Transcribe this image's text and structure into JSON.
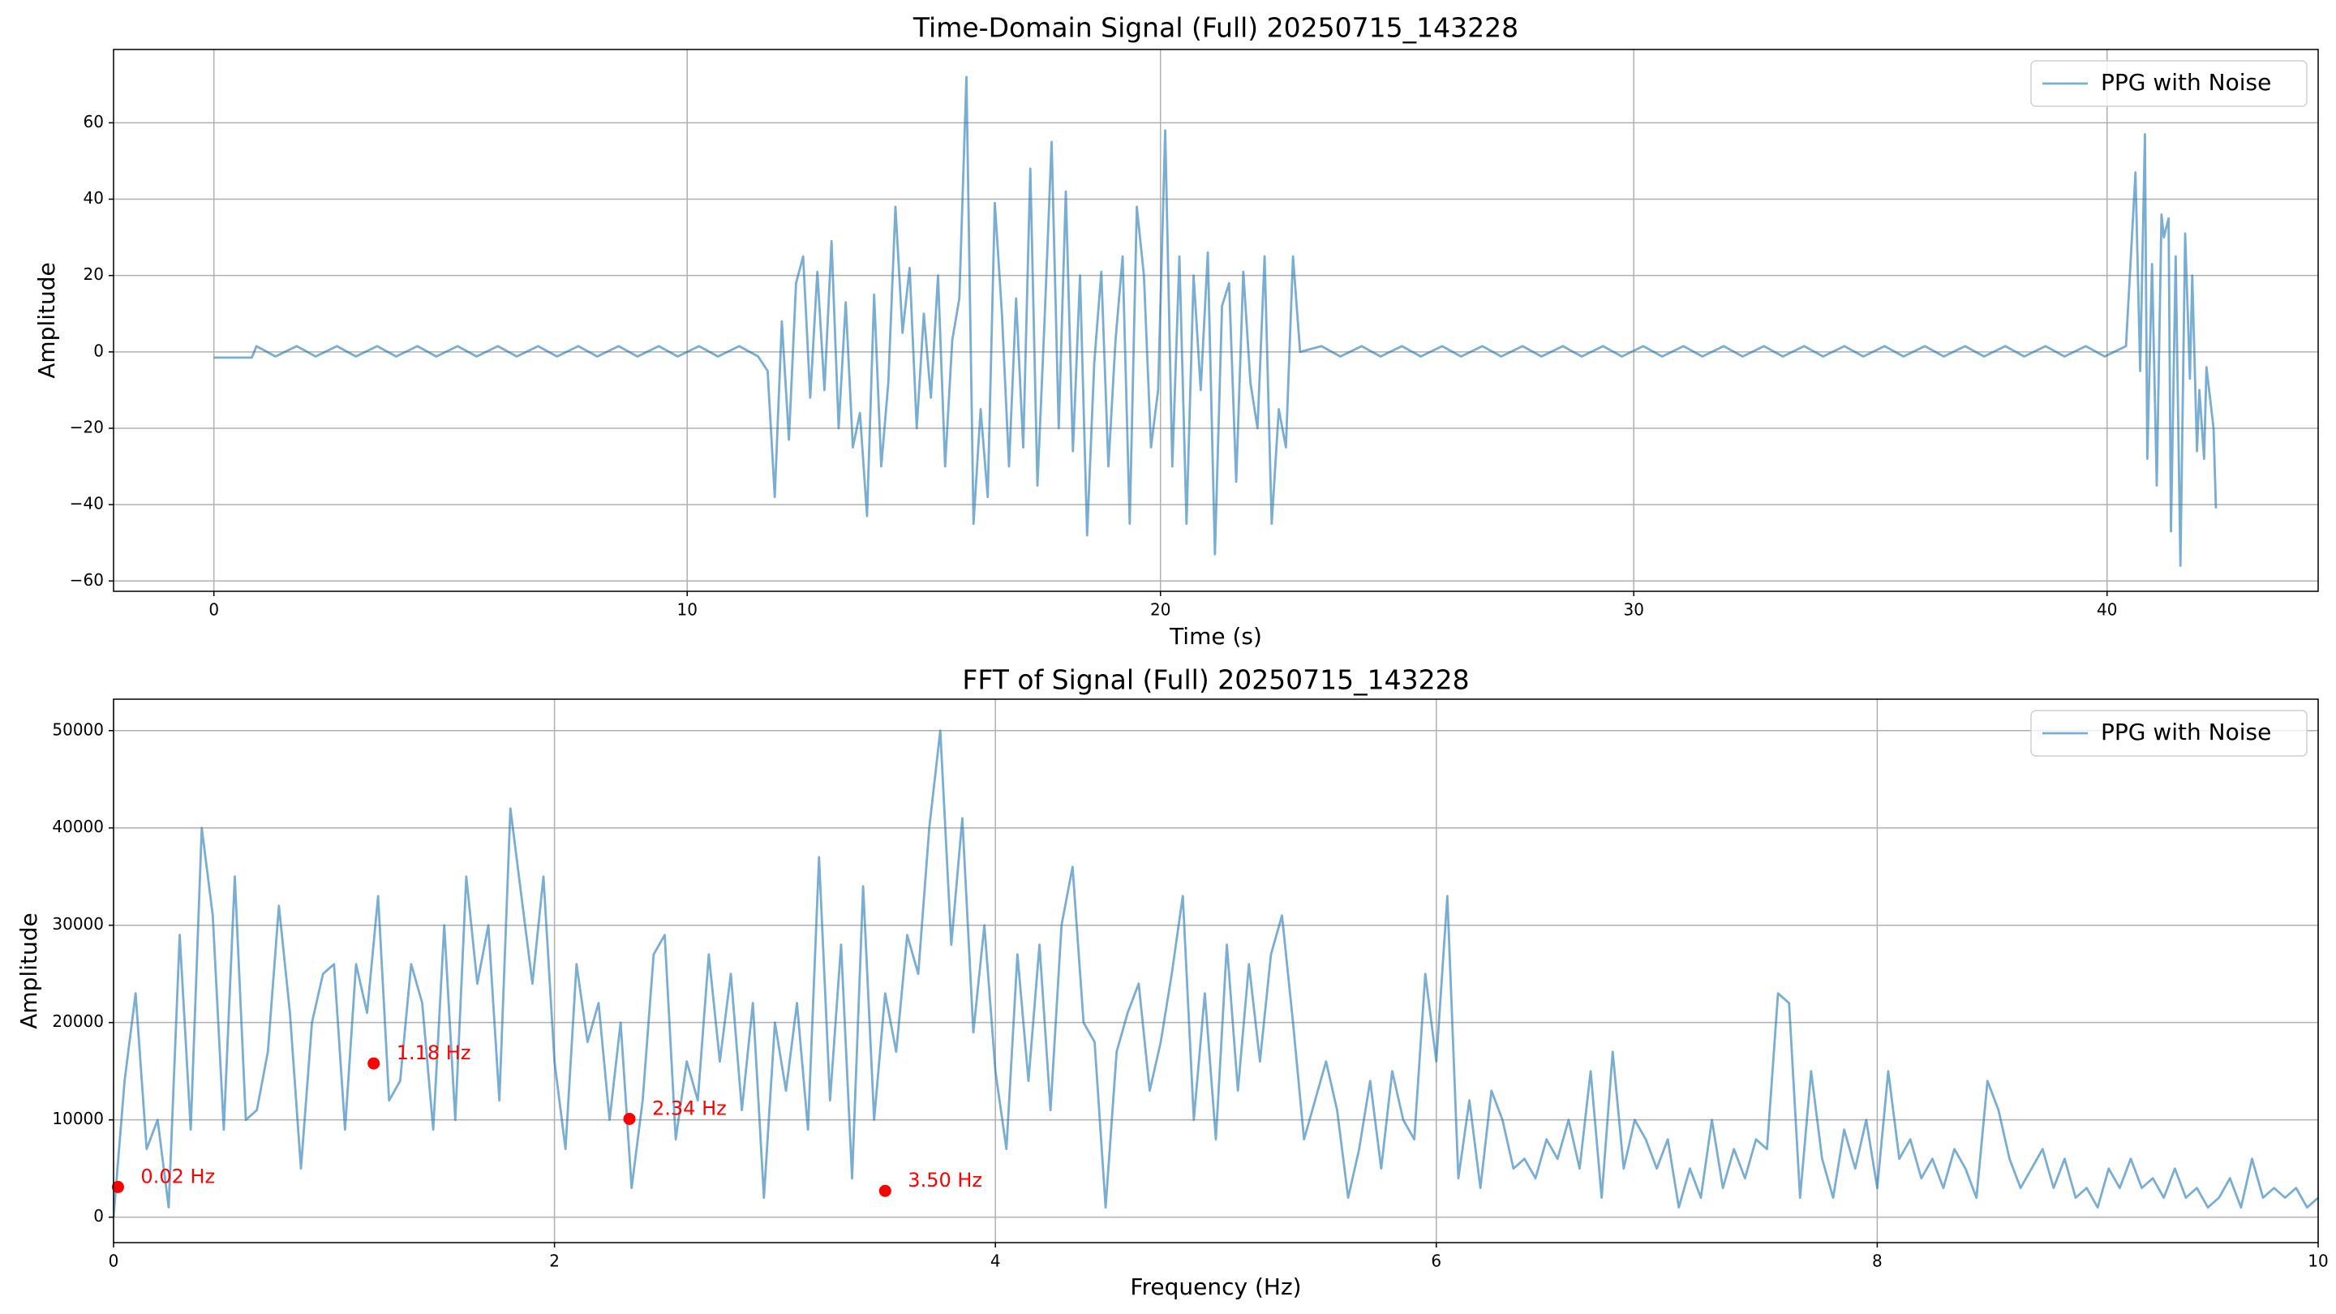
{
  "chart_data": [
    {
      "type": "line",
      "title": "Time-Domain Signal (Full) 20250715_143228",
      "xlabel": "Time (s)",
      "ylabel": "Amplitude",
      "xlim": [
        -2.12,
        44.46
      ],
      "ylim": [
        -62.7,
        79.2
      ],
      "xticks": [
        0,
        10,
        20,
        30,
        40
      ],
      "yticks": [
        {
          "value": -60,
          "label": "−60"
        },
        {
          "value": -40,
          "label": "−40"
        },
        {
          "value": -20,
          "label": "−20"
        },
        0,
        20,
        40,
        60
      ],
      "grid": true,
      "legend": "upper right",
      "series": [
        {
          "name": "PPG with Noise",
          "color": "#1f77b4",
          "x": [
            0,
            0.8,
            0.9,
            1.3,
            1.75,
            2.15,
            2.6,
            3.0,
            3.45,
            3.85,
            4.3,
            4.7,
            5.15,
            5.55,
            6.0,
            6.4,
            6.85,
            7.25,
            7.7,
            8.1,
            8.55,
            8.95,
            9.4,
            9.8,
            10.25,
            10.65,
            11.1,
            11.5,
            11.7,
            11.85,
            12.0,
            12.15,
            12.3,
            12.45,
            12.6,
            12.75,
            12.9,
            13.05,
            13.2,
            13.35,
            13.5,
            13.65,
            13.8,
            13.95,
            14.1,
            14.25,
            14.4,
            14.55,
            14.7,
            14.85,
            15.0,
            15.15,
            15.3,
            15.45,
            15.6,
            15.75,
            15.9,
            16.05,
            16.2,
            16.35,
            16.5,
            16.65,
            16.8,
            16.95,
            17.1,
            17.25,
            17.4,
            17.55,
            17.7,
            17.85,
            18.0,
            18.15,
            18.3,
            18.45,
            18.6,
            18.75,
            18.9,
            19.05,
            19.2,
            19.35,
            19.5,
            19.65,
            19.8,
            19.95,
            20.1,
            20.25,
            20.4,
            20.55,
            20.7,
            20.85,
            21.0,
            21.15,
            21.3,
            21.45,
            21.6,
            21.75,
            21.9,
            22.05,
            22.2,
            22.35,
            22.5,
            22.65,
            22.8,
            22.95,
            23.4,
            23.8,
            24.25,
            24.65,
            25.1,
            25.5,
            25.95,
            26.35,
            26.8,
            27.2,
            27.65,
            28.05,
            28.5,
            28.9,
            29.35,
            29.75,
            30.2,
            30.6,
            31.05,
            31.45,
            31.9,
            32.3,
            32.75,
            33.15,
            33.6,
            34.0,
            34.45,
            34.85,
            35.3,
            35.7,
            36.15,
            36.55,
            37.0,
            37.4,
            37.85,
            38.25,
            38.7,
            39.1,
            39.55,
            39.95,
            40.4,
            40.6,
            40.7,
            40.8,
            40.85,
            40.95,
            41.05,
            41.15,
            41.2,
            41.3,
            41.35,
            41.45,
            41.55,
            41.65,
            41.75,
            41.8,
            41.9,
            41.95,
            42.05,
            42.1,
            42.25,
            42.3
          ],
          "values": [
            -1.5,
            -1.5,
            1.5,
            -1.2,
            1.5,
            -1.2,
            1.5,
            -1.2,
            1.5,
            -1.2,
            1.5,
            -1.2,
            1.5,
            -1.2,
            1.5,
            -1.2,
            1.5,
            -1.2,
            1.5,
            -1.2,
            1.5,
            -1.2,
            1.5,
            -1.2,
            1.5,
            -1.2,
            1.5,
            -1.2,
            -5,
            -38,
            8,
            -23,
            18,
            25,
            -12,
            21,
            -10,
            29,
            -20,
            13,
            -25,
            -16,
            -43,
            15,
            -30,
            -8,
            38,
            5,
            22,
            -20,
            10,
            -12,
            20,
            -30,
            3,
            14,
            72,
            -45,
            -15,
            -38,
            39,
            10,
            -30,
            14,
            -25,
            48,
            -35,
            8,
            55,
            -20,
            42,
            -26,
            20,
            -48,
            -3,
            21,
            -30,
            3,
            25,
            -45,
            38,
            20,
            -25,
            -10,
            58,
            -30,
            25,
            -45,
            20,
            -10,
            26,
            -53,
            12,
            18,
            -34,
            21,
            -8,
            -20,
            25,
            -45,
            -15,
            -25,
            25,
            0,
            1.5,
            -1.2,
            1.5,
            -1.2,
            1.5,
            -1.2,
            1.5,
            -1.2,
            1.5,
            -1.2,
            1.5,
            -1.2,
            1.5,
            -1.2,
            1.5,
            -1.2,
            1.5,
            -1.2,
            1.5,
            -1.2,
            1.5,
            -1.2,
            1.5,
            -1.2,
            1.5,
            -1.2,
            1.5,
            -1.2,
            1.5,
            -1.2,
            1.5,
            -1.2,
            1.5,
            -1.2,
            1.5,
            -1.2,
            1.5,
            -1.2,
            1.5,
            -1.2,
            1.5,
            47,
            -5,
            57,
            -28,
            23,
            -35,
            36,
            30,
            35,
            -47,
            25,
            -56,
            31,
            -7,
            20,
            -26,
            -10,
            -28,
            -4,
            -20,
            -41
          ]
        }
      ]
    },
    {
      "type": "line",
      "title": "FFT of Signal (Full) 20250715_143228",
      "xlabel": "Frequency (Hz)",
      "ylabel": "Amplitude",
      "xlim": [
        0,
        10
      ],
      "ylim": [
        -2615,
        53230
      ],
      "xticks": [
        0,
        2,
        4,
        6,
        8,
        10
      ],
      "yticks": [
        0,
        10000,
        20000,
        30000,
        40000,
        50000
      ],
      "grid": true,
      "legend": "upper right",
      "annotations": [
        {
          "x": 0.02,
          "y": 3100,
          "label": "0.02 Hz"
        },
        {
          "x": 1.18,
          "y": 15800,
          "label": "1.18 Hz"
        },
        {
          "x": 2.34,
          "y": 10100,
          "label": "2.34 Hz"
        },
        {
          "x": 3.5,
          "y": 2700,
          "label": "3.50 Hz"
        }
      ],
      "annotation_color": "#ff0000",
      "series": [
        {
          "name": "PPG with Noise",
          "color": "#1f77b4",
          "x": [
            0,
            0.05,
            0.1,
            0.15,
            0.2,
            0.25,
            0.3,
            0.35,
            0.4,
            0.45,
            0.5,
            0.55,
            0.6,
            0.65,
            0.7,
            0.75,
            0.8,
            0.85,
            0.9,
            0.95,
            1.0,
            1.05,
            1.1,
            1.15,
            1.2,
            1.25,
            1.3,
            1.35,
            1.4,
            1.45,
            1.5,
            1.55,
            1.6,
            1.65,
            1.7,
            1.75,
            1.8,
            1.85,
            1.9,
            1.95,
            2.0,
            2.05,
            2.1,
            2.15,
            2.2,
            2.25,
            2.3,
            2.35,
            2.4,
            2.45,
            2.5,
            2.55,
            2.6,
            2.65,
            2.7,
            2.75,
            2.8,
            2.85,
            2.9,
            2.95,
            3.0,
            3.05,
            3.1,
            3.15,
            3.2,
            3.25,
            3.3,
            3.35,
            3.4,
            3.45,
            3.5,
            3.55,
            3.6,
            3.65,
            3.7,
            3.75,
            3.8,
            3.85,
            3.9,
            3.95,
            4.0,
            4.05,
            4.1,
            4.15,
            4.2,
            4.25,
            4.3,
            4.35,
            4.4,
            4.45,
            4.5,
            4.55,
            4.6,
            4.65,
            4.7,
            4.75,
            4.8,
            4.85,
            4.9,
            4.95,
            5.0,
            5.05,
            5.1,
            5.15,
            5.2,
            5.25,
            5.3,
            5.35,
            5.4,
            5.45,
            5.5,
            5.55,
            5.6,
            5.65,
            5.7,
            5.75,
            5.8,
            5.85,
            5.9,
            5.95,
            6.0,
            6.05,
            6.1,
            6.15,
            6.2,
            6.25,
            6.3,
            6.35,
            6.4,
            6.45,
            6.5,
            6.55,
            6.6,
            6.65,
            6.7,
            6.75,
            6.8,
            6.85,
            6.9,
            6.95,
            7.0,
            7.05,
            7.1,
            7.15,
            7.2,
            7.25,
            7.3,
            7.35,
            7.4,
            7.45,
            7.5,
            7.55,
            7.6,
            7.65,
            7.7,
            7.75,
            7.8,
            7.85,
            7.9,
            7.95,
            8.0,
            8.05,
            8.1,
            8.15,
            8.2,
            8.25,
            8.3,
            8.35,
            8.4,
            8.45,
            8.5,
            8.55,
            8.6,
            8.65,
            8.7,
            8.75,
            8.8,
            8.85,
            8.9,
            8.95,
            9.0,
            9.05,
            9.1,
            9.15,
            9.2,
            9.25,
            9.3,
            9.35,
            9.4,
            9.45,
            9.5,
            9.55,
            9.6,
            9.65,
            9.7,
            9.75,
            9.8,
            9.85,
            9.9,
            9.95,
            10.0
          ],
          "values": [
            0,
            14000,
            23000,
            7000,
            10000,
            1000,
            29000,
            9000,
            40000,
            31000,
            9000,
            35000,
            10000,
            11000,
            17000,
            32000,
            21000,
            5000,
            20000,
            25000,
            26000,
            9000,
            26000,
            21000,
            33000,
            12000,
            14000,
            26000,
            22000,
            9000,
            30000,
            10000,
            35000,
            24000,
            30000,
            12000,
            42000,
            33000,
            24000,
            35000,
            16000,
            7000,
            26000,
            18000,
            22000,
            10000,
            20000,
            3000,
            12000,
            27000,
            29000,
            8000,
            16000,
            12000,
            27000,
            16000,
            25000,
            11000,
            22000,
            2000,
            20000,
            13000,
            22000,
            9000,
            37000,
            12000,
            28000,
            4000,
            34000,
            10000,
            23000,
            17000,
            29000,
            25000,
            40000,
            50000,
            28000,
            41000,
            19000,
            30000,
            15000,
            7000,
            27000,
            14000,
            28000,
            11000,
            30000,
            36000,
            20000,
            18000,
            1000,
            17000,
            21000,
            24000,
            13000,
            18000,
            25000,
            33000,
            10000,
            23000,
            8000,
            28000,
            13000,
            26000,
            16000,
            27000,
            31000,
            20000,
            8000,
            12000,
            16000,
            11000,
            2000,
            7000,
            14000,
            5000,
            15000,
            10000,
            8000,
            25000,
            16000,
            33000,
            4000,
            12000,
            3000,
            13000,
            10000,
            5000,
            6000,
            4000,
            8000,
            6000,
            10000,
            5000,
            15000,
            2000,
            17000,
            5000,
            10000,
            8000,
            5000,
            8000,
            1000,
            5000,
            2000,
            10000,
            3000,
            7000,
            4000,
            8000,
            7000,
            23000,
            22000,
            2000,
            15000,
            6000,
            2000,
            9000,
            5000,
            10000,
            3000,
            15000,
            6000,
            8000,
            4000,
            6000,
            3000,
            7000,
            5000,
            2000,
            14000,
            11000,
            6000,
            3000,
            5000,
            7000,
            3000,
            6000,
            2000,
            3000,
            1000,
            5000,
            3000,
            6000,
            3000,
            4000,
            2000,
            5000,
            2000,
            3000,
            1000,
            2000,
            4000,
            1000,
            6000,
            2000,
            3000,
            2000,
            3000,
            1000,
            2000
          ]
        }
      ]
    }
  ]
}
